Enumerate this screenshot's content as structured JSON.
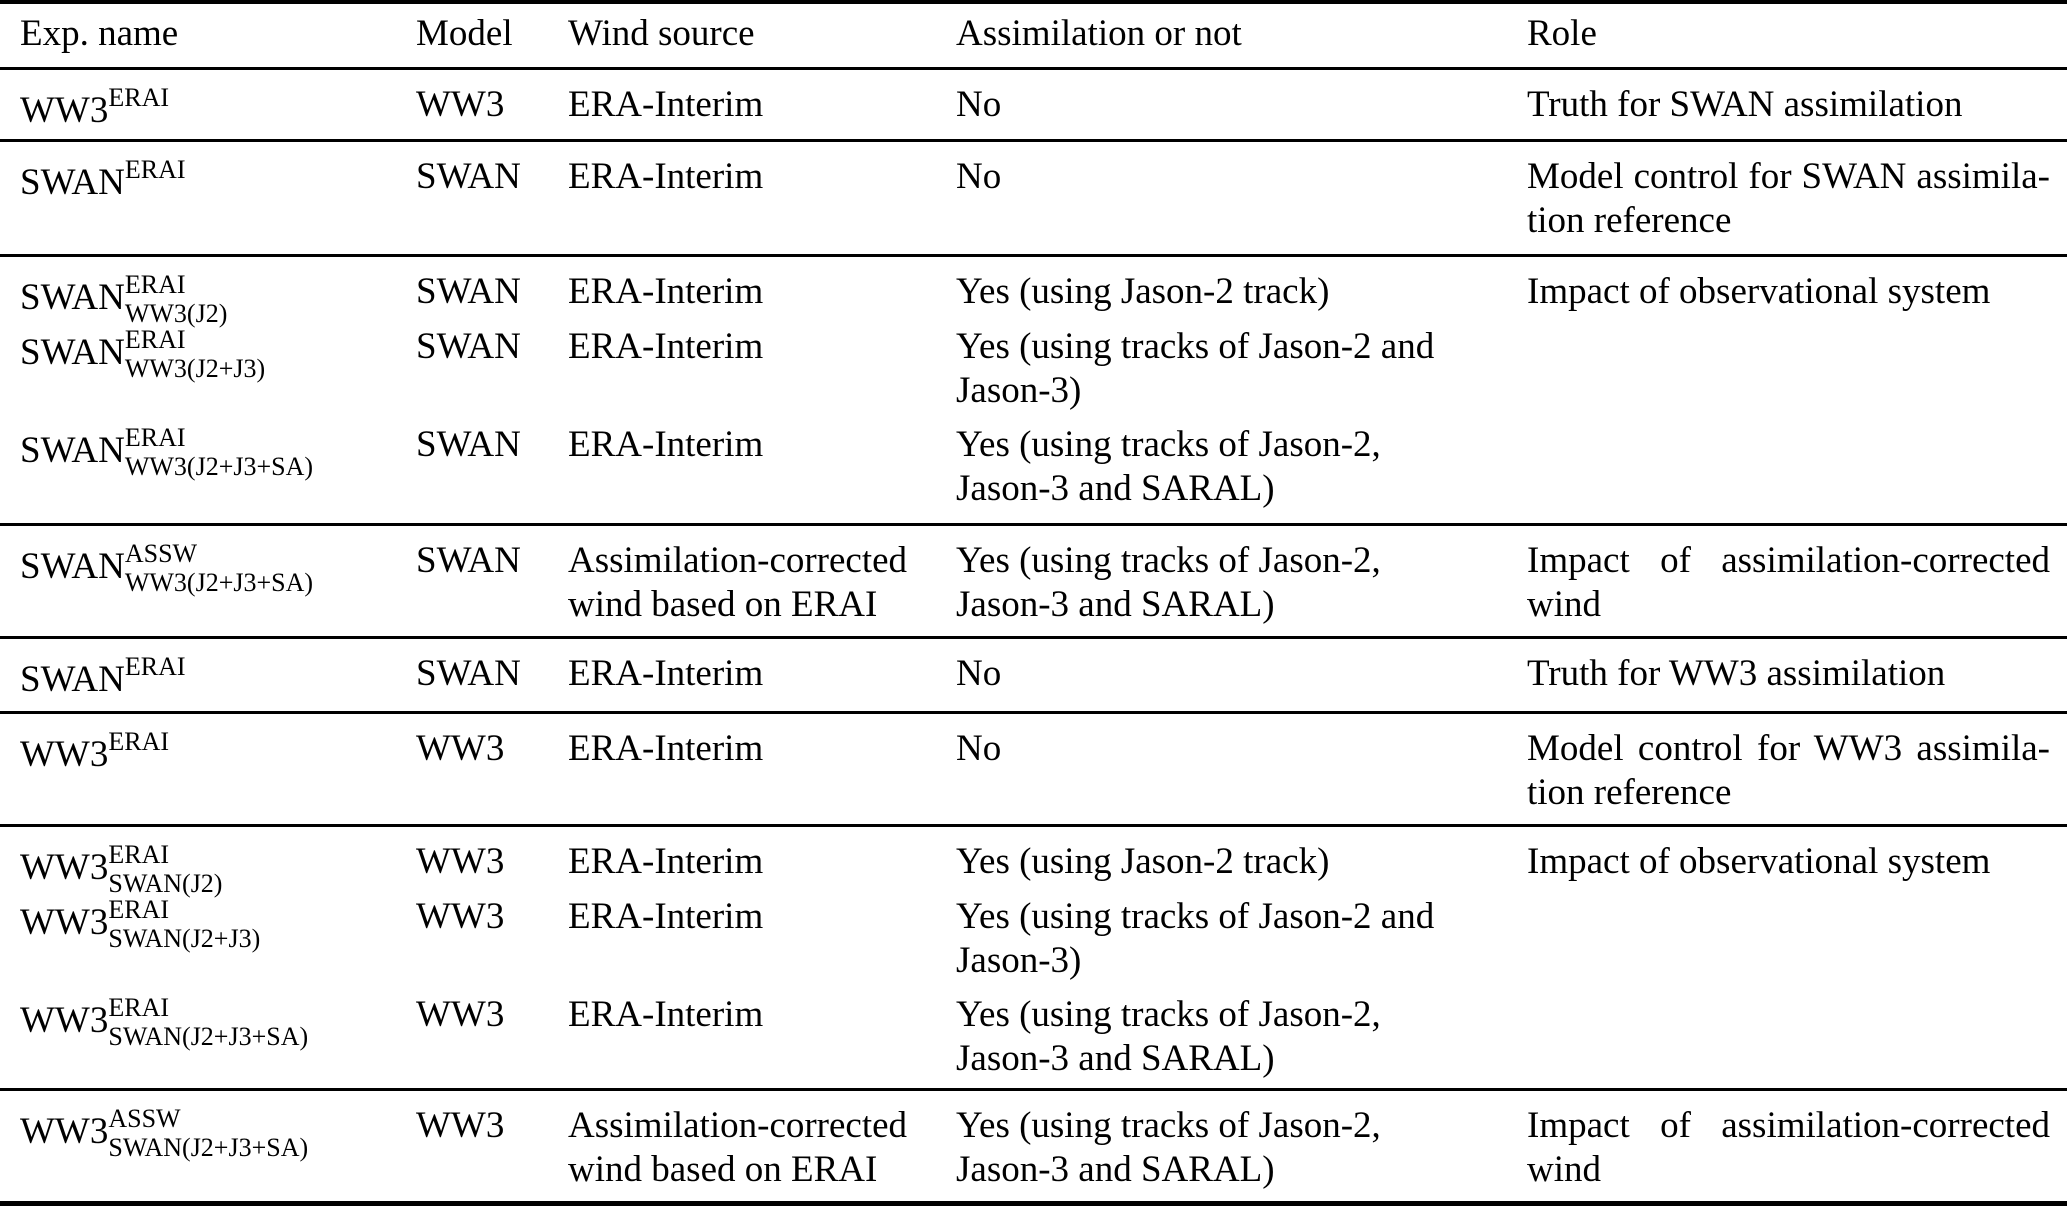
{
  "table": {
    "columns": [
      "Exp. name",
      "Model",
      "Wind source",
      "Assimilation or not",
      "Role"
    ],
    "groups": [
      {
        "rows": [
          {
            "exp": {
              "base": "WW3",
              "sup": "ERAI"
            },
            "model": "WW3",
            "wind": "ERA-Interim",
            "assim": "No",
            "role": "Truth for SWAN assimilation"
          }
        ]
      },
      {
        "rows": [
          {
            "exp": {
              "base": "SWAN",
              "sup": "ERAI"
            },
            "model": "SWAN",
            "wind": "ERA-Interim",
            "assim": "No",
            "role": [
              "Model control for SWAN assimila-",
              "tion reference"
            ]
          }
        ]
      },
      {
        "rows": [
          {
            "exp": {
              "base": "SWAN",
              "sup": "ERAI",
              "sub": "WW3(J2)"
            },
            "model": "SWAN",
            "wind": "ERA-Interim",
            "assim": "Yes (using Jason-2 track)",
            "role": "Impact of observational system"
          },
          {
            "exp": {
              "base": "SWAN",
              "sup": "ERAI",
              "sub": "WW3(J2+J3)"
            },
            "model": "SWAN",
            "wind": "ERA-Interim",
            "assim": [
              "Yes (using tracks of Jason-2 and",
              "Jason-3)"
            ],
            "role": ""
          },
          {
            "exp": {
              "base": "SWAN",
              "sup": "ERAI",
              "sub": "WW3(J2+J3+SA)"
            },
            "model": "SWAN",
            "wind": "ERA-Interim",
            "assim": [
              "Yes (using tracks of Jason-2,",
              "Jason-3 and SARAL)"
            ],
            "role": ""
          }
        ]
      },
      {
        "rows": [
          {
            "exp": {
              "base": "SWAN",
              "sup": "ASSW",
              "sub": "WW3(J2+J3+SA)"
            },
            "model": "SWAN",
            "wind": [
              "Assimilation-corrected",
              "wind based on ERAI"
            ],
            "assim": [
              "Yes (using tracks of Jason-2,",
              "Jason-3 and SARAL)"
            ],
            "role": [
              "Impact of assimilation-corrected",
              "wind"
            ]
          }
        ]
      },
      {
        "rows": [
          {
            "exp": {
              "base": "SWAN",
              "sup": "ERAI"
            },
            "model": "SWAN",
            "wind": "ERA-Interim",
            "assim": "No",
            "role": "Truth for WW3 assimilation"
          }
        ]
      },
      {
        "rows": [
          {
            "exp": {
              "base": "WW3",
              "sup": "ERAI"
            },
            "model": "WW3",
            "wind": "ERA-Interim",
            "assim": "No",
            "role": [
              "Model control for WW3 assimila-",
              "tion reference"
            ]
          }
        ]
      },
      {
        "rows": [
          {
            "exp": {
              "base": "WW3",
              "sup": "ERAI",
              "sub": "SWAN(J2)"
            },
            "model": "WW3",
            "wind": "ERA-Interim",
            "assim": "Yes (using Jason-2 track)",
            "role": "Impact of observational system"
          },
          {
            "exp": {
              "base": "WW3",
              "sup": "ERAI",
              "sub": "SWAN(J2+J3)"
            },
            "model": "WW3",
            "wind": "ERA-Interim",
            "assim": [
              "Yes (using tracks of Jason-2 and",
              "Jason-3)"
            ],
            "role": ""
          },
          {
            "exp": {
              "base": "WW3",
              "sup": "ERAI",
              "sub": "SWAN(J2+J3+SA)"
            },
            "model": "WW3",
            "wind": "ERA-Interim",
            "assim": [
              "Yes (using tracks of Jason-2,",
              "Jason-3 and SARAL)"
            ],
            "role": ""
          }
        ]
      },
      {
        "rows": [
          {
            "exp": {
              "base": "WW3",
              "sup": "ASSW",
              "sub": "SWAN(J2+J3+SA)"
            },
            "model": "WW3",
            "wind": [
              "Assimilation-corrected",
              "wind based on ERAI"
            ],
            "assim": [
              "Yes (using tracks of Jason-2,",
              "Jason-3 and SARAL)"
            ],
            "role": [
              "Impact of assimilation-corrected",
              "wind"
            ]
          }
        ]
      }
    ]
  },
  "colors": {
    "text": "#000000",
    "background": "#ffffff",
    "rule": "#000000"
  }
}
